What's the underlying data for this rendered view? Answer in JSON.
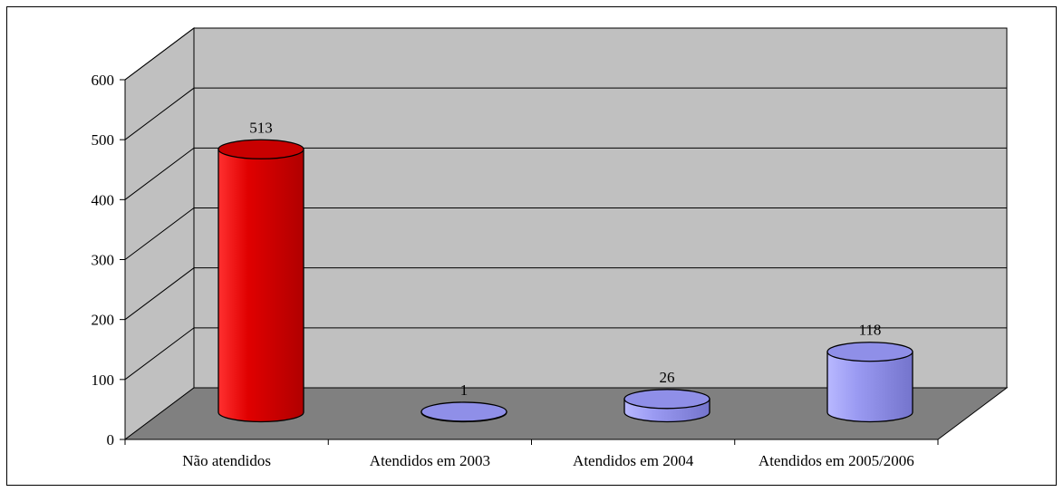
{
  "chart_data": {
    "type": "bar",
    "style": "3d-cylinder",
    "categories": [
      "Não atendidos",
      "Atendidos em 2003",
      "Atendidos em 2004",
      "Atendidos em 2005/2006"
    ],
    "values": [
      513,
      1,
      26,
      118
    ],
    "data_labels": [
      "513",
      "1",
      "26",
      "118"
    ],
    "colors": [
      "#e00000",
      "#8f8fe8",
      "#8f8fe8",
      "#8f8fe8"
    ],
    "ylim": [
      0,
      600
    ],
    "yticks": [
      0,
      100,
      200,
      300,
      400,
      500,
      600
    ],
    "ytick_labels": [
      "0",
      "100",
      "200",
      "300",
      "400",
      "500",
      "600"
    ],
    "grid": true,
    "wall_color": "#c0c0c0",
    "floor_color": "#808080",
    "title": "",
    "xlabel": "",
    "ylabel": ""
  }
}
